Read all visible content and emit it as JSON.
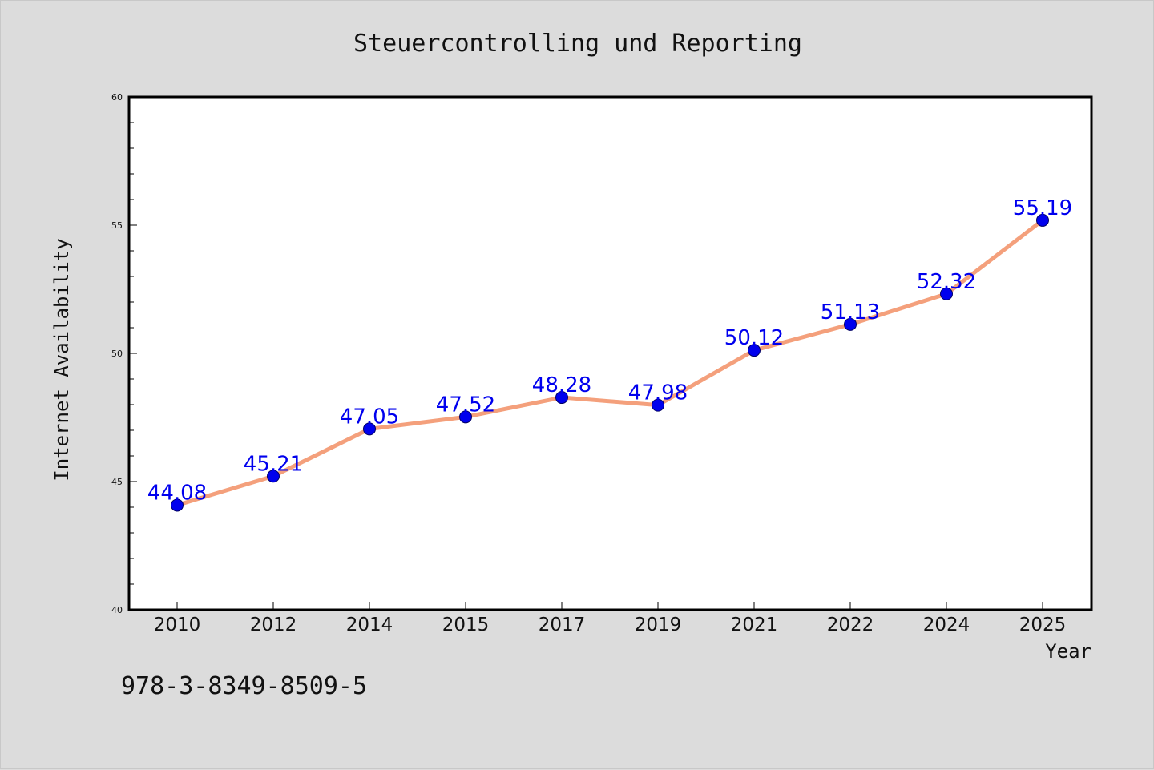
{
  "chart_data": {
    "type": "line",
    "title": "Steuercontrolling und Reporting",
    "xlabel": "Year",
    "ylabel": "Internet Availability",
    "categories": [
      "2010",
      "2012",
      "2014",
      "2015",
      "2017",
      "2019",
      "2021",
      "2022",
      "2024",
      "2025"
    ],
    "series": [
      {
        "values": [
          44.08,
          45.21,
          47.05,
          47.52,
          48.28,
          47.98,
          50.12,
          51.13,
          52.32,
          55.19
        ],
        "data_labels": [
          "44.08",
          "45.21",
          "47.05",
          "47.52",
          "48.28",
          "47.98",
          "50.12",
          "51.13",
          "52.32",
          "55.19"
        ]
      }
    ],
    "ylim": [
      40,
      60
    ],
    "yticks": [
      "40",
      "45",
      "50",
      "55",
      "60"
    ],
    "grid": false,
    "line_color": "#f4a07c",
    "marker_color": "#0000ee",
    "label_color": "#0000ee",
    "annotation": "978-3-8349-8509-5"
  }
}
